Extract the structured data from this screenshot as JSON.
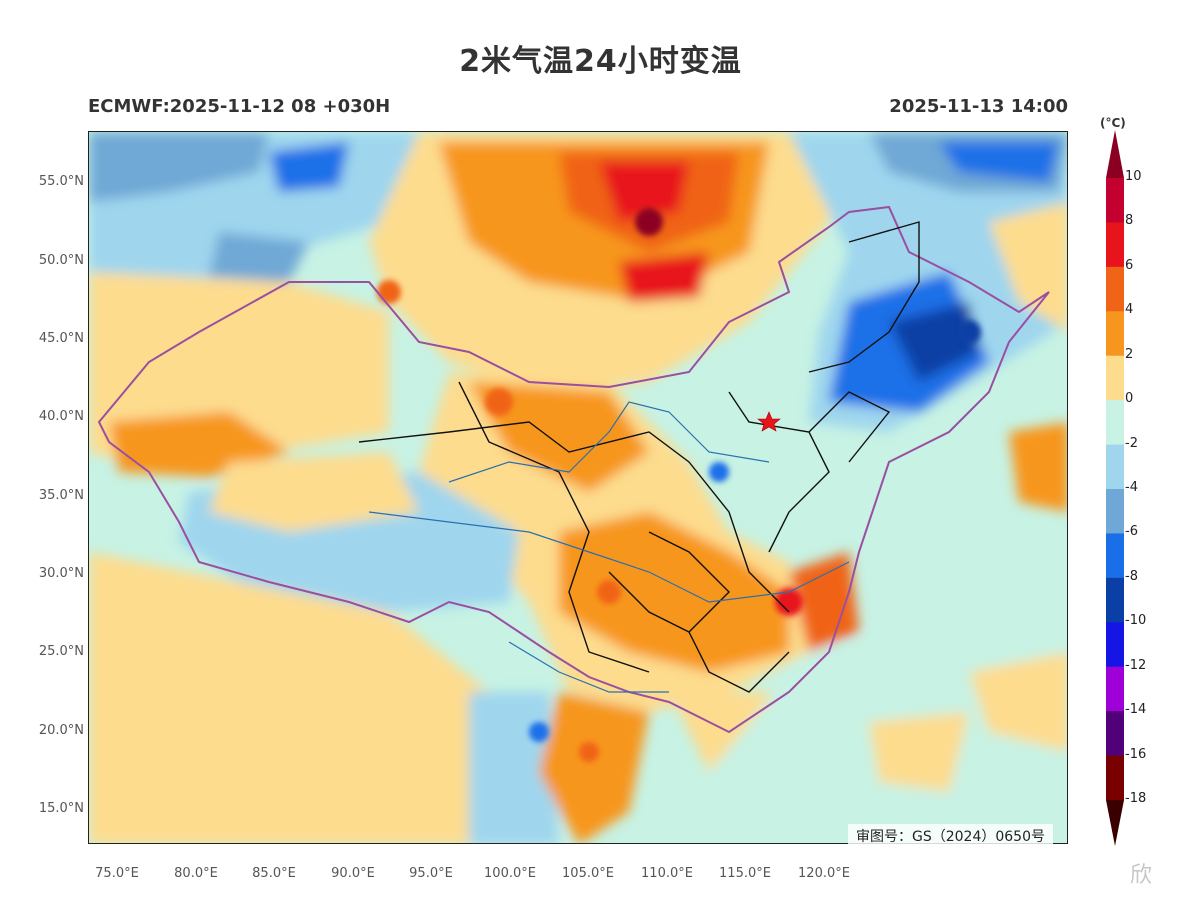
{
  "title": "2米气温24小时变温",
  "subtitle_left": "ECMWF:2025-11-12 08 +030H",
  "subtitle_right": "2025-11-13 14:00",
  "map": {
    "lat_ticks": [
      "55.0°N",
      "50.0°N",
      "45.0°N",
      "40.0°N",
      "35.0°N",
      "30.0°N",
      "25.0°N",
      "20.0°N",
      "15.0°N"
    ],
    "lon_ticks": [
      "75.0°E",
      "80.0°E",
      "85.0°E",
      "90.0°E",
      "95.0°E",
      "100.0°E",
      "105.0°E",
      "110.0°E",
      "115.0°E",
      "120.0°E"
    ],
    "credit": "审图号：GS（2024）0650号",
    "marker": "red-star"
  },
  "colorbar": {
    "unit": "(°C)",
    "labels": [
      "10",
      "8",
      "6",
      "4",
      "2",
      "0",
      "-2",
      "-4",
      "-6",
      "-8",
      "-10",
      "-12",
      "-14",
      "-16",
      "-18"
    ],
    "colors": [
      "#8b0022",
      "#c3002f",
      "#e8141c",
      "#f06418",
      "#f7961f",
      "#fddc8e",
      "#c7f2e4",
      "#9fd6ee",
      "#6fa8d6",
      "#1a6fe8",
      "#0a3fa5",
      "#1515e6",
      "#a000d8",
      "#52007a",
      "#7a0000",
      "#3a0000"
    ]
  },
  "watermark": "欣"
}
